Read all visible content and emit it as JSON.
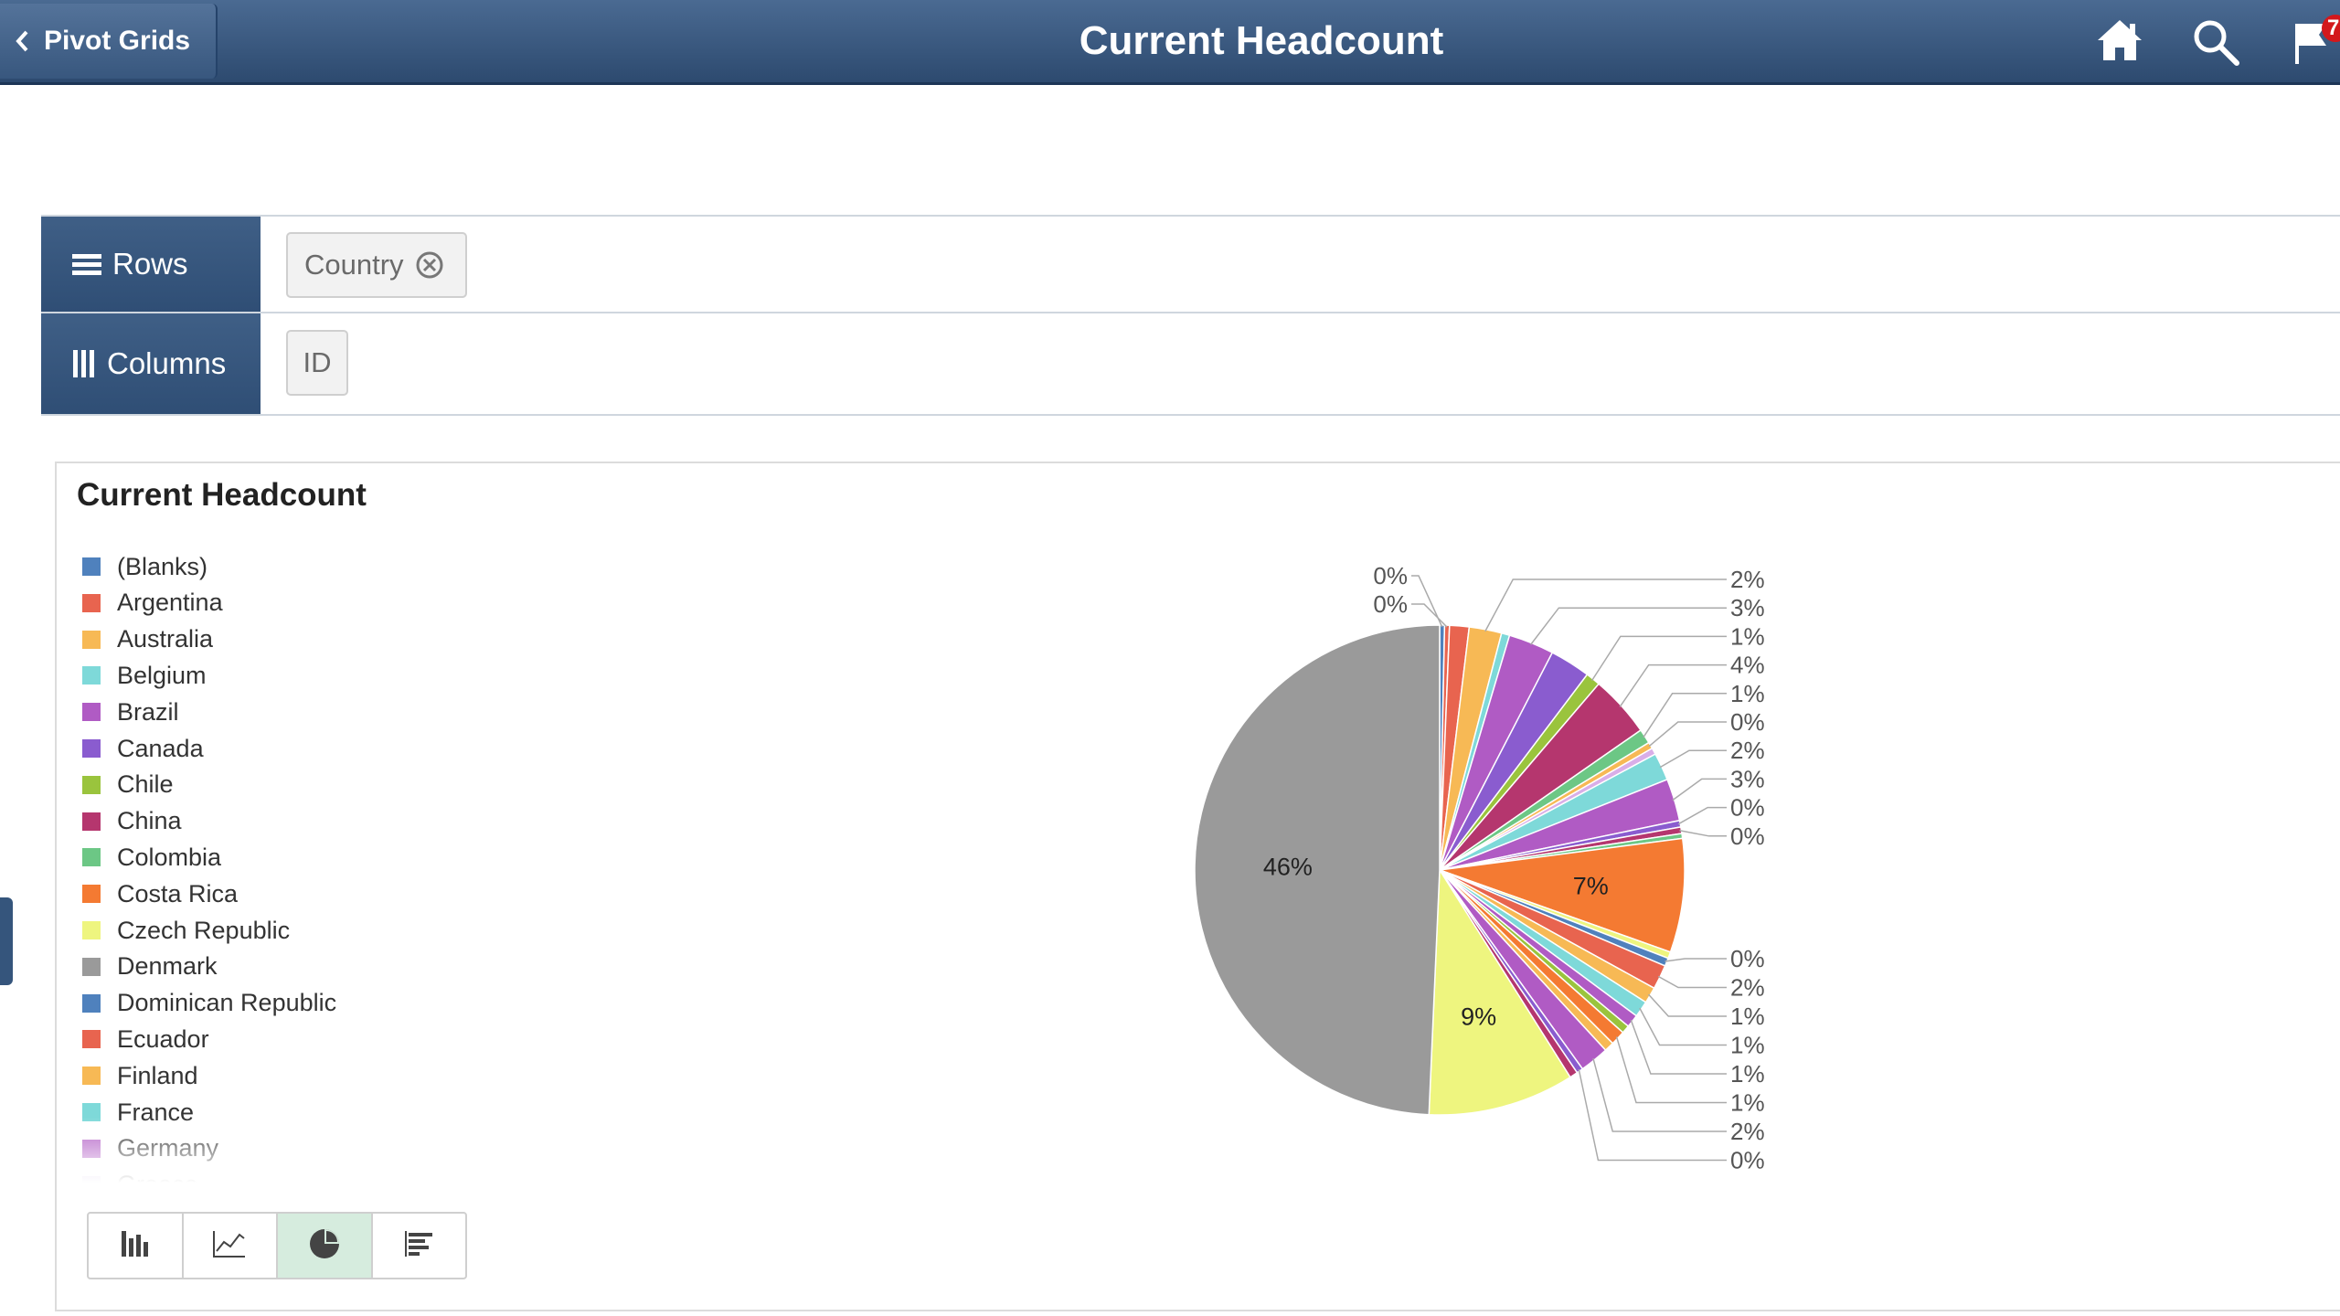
{
  "header": {
    "back_label": "Pivot Grids",
    "title": "Current Headcount",
    "notification_count": "7",
    "colors": {
      "bar_top": "#4a6a92",
      "bar_bottom": "#2d4a6f"
    }
  },
  "pivot": {
    "rows_label": "Rows",
    "columns_label": "Columns",
    "row_chip": "Country",
    "column_chip": "ID"
  },
  "chart_panel": {
    "title": "Current Headcount",
    "chart_type_buttons": [
      "bar-chart-icon",
      "line-chart-icon",
      "pie-chart-icon",
      "horizontal-bar-chart-icon"
    ],
    "active_chart_type": "pie-chart-icon"
  },
  "chart_data": {
    "type": "pie",
    "title": "Current Headcount",
    "legend_position": "left",
    "legend": [
      {
        "name": "(Blanks)",
        "color": "#4f81bd"
      },
      {
        "name": "Argentina",
        "color": "#e8644f"
      },
      {
        "name": "Australia",
        "color": "#f7b955"
      },
      {
        "name": "Belgium",
        "color": "#7ed9d9"
      },
      {
        "name": "Brazil",
        "color": "#b05bc4"
      },
      {
        "name": "Canada",
        "color": "#8a5ccf"
      },
      {
        "name": "Chile",
        "color": "#9ac43d"
      },
      {
        "name": "China",
        "color": "#b5366e"
      },
      {
        "name": "Colombia",
        "color": "#6cc785"
      },
      {
        "name": "Costa Rica",
        "color": "#f47a32"
      },
      {
        "name": "Czech Republic",
        "color": "#eef57f"
      },
      {
        "name": "Denmark",
        "color": "#9a9a9a"
      },
      {
        "name": "Dominican Republic",
        "color": "#4f81bd"
      },
      {
        "name": "Ecuador",
        "color": "#e8644f"
      },
      {
        "name": "Finland",
        "color": "#f7b955"
      },
      {
        "name": "France",
        "color": "#7ed9d9"
      },
      {
        "name": "Germany",
        "color": "#b05bc4"
      },
      {
        "name": "Greece",
        "color": "#c9b6e8"
      }
    ],
    "slices": [
      {
        "label": "0%",
        "value": 0.3,
        "color": "#4f81bd"
      },
      {
        "label": "0%",
        "value": 0.3,
        "color": "#e8644f"
      },
      {
        "label": "",
        "value": 1.2,
        "color": "#e8644f"
      },
      {
        "label": "2%",
        "value": 2.0,
        "color": "#f7b955"
      },
      {
        "label": "",
        "value": 0.5,
        "color": "#7ed9d9"
      },
      {
        "label": "3%",
        "value": 2.8,
        "color": "#b05bc4"
      },
      {
        "label": "",
        "value": 2.5,
        "color": "#8a5ccf"
      },
      {
        "label": "1%",
        "value": 0.9,
        "color": "#9ac43d"
      },
      {
        "label": "4%",
        "value": 3.8,
        "color": "#b5366e"
      },
      {
        "label": "1%",
        "value": 0.9,
        "color": "#6cc785"
      },
      {
        "label": "0%",
        "value": 0.4,
        "color": "#f7b955"
      },
      {
        "label": "",
        "value": 0.4,
        "color": "#d9aee8"
      },
      {
        "label": "2%",
        "value": 1.7,
        "color": "#7ed9d9"
      },
      {
        "label": "3%",
        "value": 2.6,
        "color": "#b05bc4"
      },
      {
        "label": "0%",
        "value": 0.4,
        "color": "#8a5ccf"
      },
      {
        "label": "0%",
        "value": 0.4,
        "color": "#b5366e"
      },
      {
        "label": "",
        "value": 0.3,
        "color": "#6cc785"
      },
      {
        "label": "7%",
        "value": 7.0,
        "color": "#f47a32",
        "inner": true
      },
      {
        "label": "",
        "value": 0.4,
        "color": "#eef57f"
      },
      {
        "label": "0%",
        "value": 0.5,
        "color": "#4f81bd"
      },
      {
        "label": "2%",
        "value": 1.5,
        "color": "#e8644f"
      },
      {
        "label": "1%",
        "value": 1.0,
        "color": "#f7b955"
      },
      {
        "label": "1%",
        "value": 1.0,
        "color": "#7ed9d9"
      },
      {
        "label": "1%",
        "value": 0.8,
        "color": "#b05bc4"
      },
      {
        "label": "",
        "value": 0.5,
        "color": "#9ac43d"
      },
      {
        "label": "1%",
        "value": 0.9,
        "color": "#f47a32"
      },
      {
        "label": "",
        "value": 0.6,
        "color": "#f7b955"
      },
      {
        "label": "2%",
        "value": 1.8,
        "color": "#b05bc4"
      },
      {
        "label": "0%",
        "value": 0.4,
        "color": "#8a5ccf"
      },
      {
        "label": "",
        "value": 0.5,
        "color": "#b5366e"
      },
      {
        "label": "9%",
        "value": 9.0,
        "color": "#eef57f",
        "inner": true
      },
      {
        "label": "46%",
        "value": 46.0,
        "color": "#9a9a9a",
        "inner": true
      }
    ]
  }
}
